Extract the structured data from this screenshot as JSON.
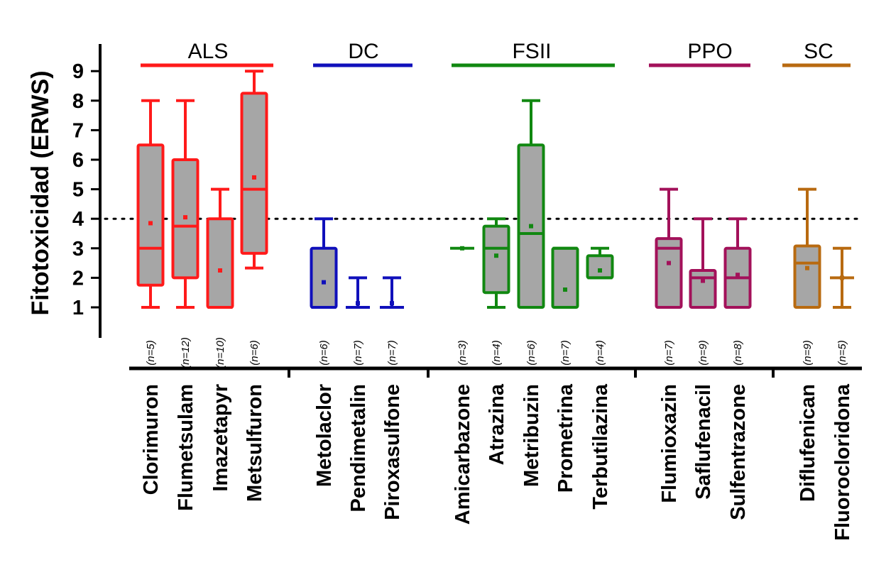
{
  "chart_data": {
    "type": "box",
    "ylabel": "Fitotoxicidad (ERWS)",
    "ylim": [
      0,
      9.7
    ],
    "yticks": [
      1,
      2,
      3,
      4,
      5,
      6,
      7,
      8,
      9
    ],
    "threshold": 4,
    "grid": false,
    "groups": [
      {
        "name": "ALS",
        "color": "#ff1a1a",
        "items": [
          {
            "label": "Clorimuron",
            "n": "(n=5)",
            "min": 1,
            "q1": 1.75,
            "median": 3,
            "q3": 6.5,
            "max": 8,
            "mean": 3.85
          },
          {
            "label": "Flumetsulam",
            "n": "(n=12)",
            "min": 1,
            "q1": 2,
            "median": 3.75,
            "q3": 6,
            "max": 8,
            "mean": 4.05
          },
          {
            "label": "Imazetapyr",
            "n": "(n=10)",
            "min": 1,
            "q1": 1,
            "median": 1,
            "q3": 4,
            "max": 5,
            "mean": 2.25
          },
          {
            "label": "Metsulfuron",
            "n": "(n=6)",
            "min": 2.33,
            "q1": 2.83,
            "median": 5,
            "q3": 8.25,
            "max": 9,
            "mean": 5.4
          }
        ]
      },
      {
        "name": "DC",
        "color": "#1010bb",
        "items": [
          {
            "label": "Metolaclor",
            "n": "(n=6)",
            "min": 1,
            "q1": 1,
            "median": 1,
            "q3": 3,
            "max": 4,
            "mean": 1.85
          },
          {
            "label": "Pendimetalin",
            "n": "(n=7)",
            "min": 1,
            "q1": 1,
            "median": 1,
            "q3": 1,
            "max": 2,
            "mean": 1.14
          },
          {
            "label": "Piroxasulfone",
            "n": "(n=7)",
            "min": 1,
            "q1": 1,
            "median": 1,
            "q3": 1,
            "max": 2,
            "mean": 1.14
          }
        ]
      },
      {
        "name": "FSII",
        "color": "#118811",
        "items": [
          {
            "label": "Amicarbazone",
            "n": "(n=3)",
            "min": 3,
            "q1": 3,
            "median": 3,
            "q3": 3,
            "max": 3,
            "mean": 3.0
          },
          {
            "label": "Atrazina",
            "n": "(n=4)",
            "min": 1,
            "q1": 1.5,
            "median": 3,
            "q3": 3.75,
            "max": 4,
            "mean": 2.75
          },
          {
            "label": "Metribuzin",
            "n": "(n=6)",
            "min": 1,
            "q1": 1,
            "median": 3.5,
            "q3": 6.5,
            "max": 8,
            "mean": 3.75
          },
          {
            "label": "Prometrina",
            "n": "(n=7)",
            "min": 1,
            "q1": 1,
            "median": 3,
            "q3": 3,
            "max": 3,
            "mean": 1.6
          },
          {
            "label": "Terbutilazina",
            "n": "(n=4)",
            "min": 2,
            "q1": 2,
            "median": 2,
            "q3": 2.75,
            "max": 3,
            "mean": 2.25
          }
        ]
      },
      {
        "name": "PPO",
        "color": "#a3115a",
        "items": [
          {
            "label": "Flumioxazin",
            "n": "(n=7)",
            "min": 1,
            "q1": 1,
            "median": 3,
            "q3": 3.33,
            "max": 5,
            "mean": 2.5
          },
          {
            "label": "Saflufenacil",
            "n": "(n=9)",
            "min": 1,
            "q1": 1,
            "median": 2,
            "q3": 2.25,
            "max": 4,
            "mean": 1.9
          },
          {
            "label": "Sulfentrazone",
            "n": "(n=8)",
            "min": 1,
            "q1": 1,
            "median": 2,
            "q3": 3,
            "max": 4,
            "mean": 2.1
          }
        ]
      },
      {
        "name": "SC",
        "color": "#b86a10",
        "items": [
          {
            "label": "Diflufenican",
            "n": "(n=9)",
            "min": 1,
            "q1": 1,
            "median": 2.5,
            "q3": 3.08,
            "max": 5,
            "mean": 2.33
          },
          {
            "label": "Fluorocloridona",
            "n": "(n=5)",
            "min": 1,
            "q1": 2,
            "median": 2,
            "q3": 2,
            "max": 3,
            "mean": 2.0
          }
        ]
      }
    ]
  }
}
